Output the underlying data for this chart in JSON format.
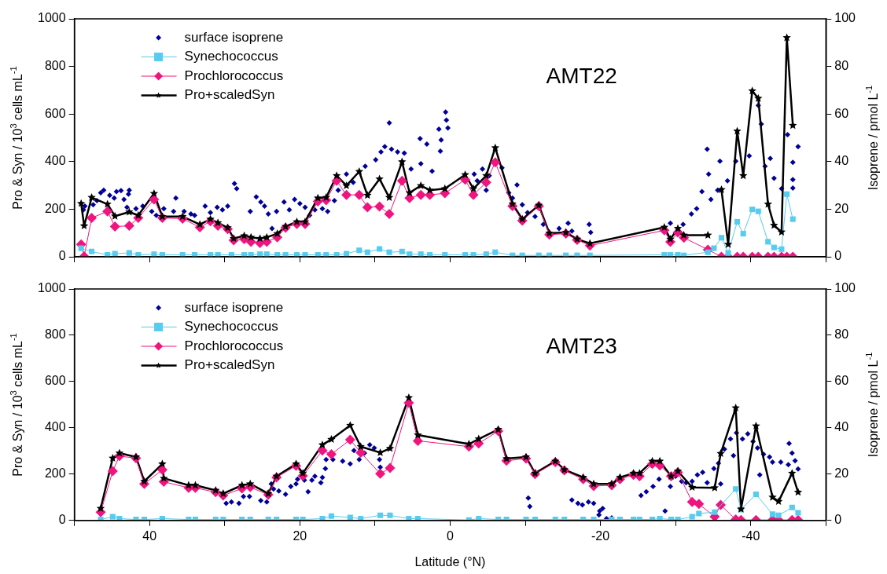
{
  "chart_data": [
    {
      "type": "line",
      "ylabel": "Pro & Syn / 10$^{3}$ cells mL$^{-1}$",
      "y2label": "Isoprene / pmol L$^{-1}$",
      "annotations": [
        "AMT22"
      ],
      "legend": "top left",
      "tick_labels": "y",
      "xlim": [
        50,
        -50
      ],
      "xticks": [
        {
          "value": 50,
          "label": null
        },
        40,
        {
          "value": 30,
          "label": null
        },
        20,
        {
          "value": 10,
          "label": null
        },
        0,
        {
          "value": -10,
          "label": null
        },
        -20,
        {
          "value": -30,
          "label": null
        },
        -40,
        {
          "value": -50,
          "label": null
        }
      ],
      "ylim": [
        0,
        1000
      ],
      "yticks": [
        0,
        200,
        400,
        600,
        800,
        1000
      ],
      "y2lim": [
        0,
        100
      ],
      "y2ticks": [
        0,
        20,
        40,
        60,
        80,
        100
      ],
      "series": [
        {
          "name": "surface isoprene",
          "type": "scatter",
          "axis": "y2",
          "marker": "diamond",
          "color": "#000099",
          "x": [
            48.8,
            48.6,
            47.5,
            47.0,
            46.5,
            46.1,
            45.3,
            44.7,
            44.4,
            43.8,
            43.4,
            42.8,
            42.7,
            43.0,
            41.8,
            40.9,
            39.7,
            39.1,
            38.1,
            36.8,
            36.5,
            35.4,
            34.5,
            34.0,
            32.6,
            31.9,
            31.0,
            30.3,
            29.6,
            28.7,
            28.4,
            26.6,
            25.8,
            25.2,
            24.7,
            24.2,
            23.7,
            23.1,
            22.1,
            21.4,
            20.7,
            20.0,
            19.3,
            18.7,
            18.0,
            17.0,
            16.3,
            15.4,
            14.9,
            13.8,
            12.9,
            11.3,
            9.9,
            9.2,
            8.7,
            8.1,
            7.8,
            7.0,
            6.1,
            5.2,
            3.9,
            4.0,
            3.1,
            2.4,
            1.5,
            1.2,
            1.3,
            0.6,
            0.5,
            0.3,
            -3.2,
            -3.6,
            -4.3,
            -5.2,
            -4.8,
            -6.9,
            -7.8,
            -8.3,
            -8.9,
            -9.6,
            -10.3,
            -11.3,
            -12.4,
            -14.5,
            -15.7,
            -16.2,
            -18.5,
            -18.7,
            -29.3,
            -31.0,
            -32.1,
            -32.8,
            -33.5,
            -34.2,
            -34.4,
            -34.7,
            -35.6,
            -35.9,
            -36.9,
            -38.0,
            -39.8,
            -41.0,
            -41.4,
            -41.9,
            -42.6,
            -43.1,
            -44.1,
            -44.9,
            -45.6,
            -45.6,
            -45.6,
            -46.3
          ],
          "values": [
            19.7,
            21.3,
            21.9,
            23.6,
            26.9,
            28.0,
            25.8,
            24.7,
            27.4,
            27.8,
            24.1,
            26.3,
            28.0,
            20.8,
            20.2,
            21.3,
            19.1,
            17.4,
            20.2,
            19.1,
            24.7,
            19.1,
            18.0,
            17.4,
            21.3,
            18.6,
            20.8,
            19.7,
            21.3,
            30.8,
            28.6,
            19.1,
            25.2,
            23.0,
            21.3,
            18.0,
            11.9,
            19.1,
            23.0,
            19.7,
            24.1,
            22.4,
            20.8,
            17.4,
            19.7,
            20.2,
            19.1,
            23.6,
            28.0,
            34.7,
            31.3,
            38.0,
            40.8,
            44.1,
            46.3,
            56.3,
            45.2,
            44.1,
            43.6,
            36.9,
            39.1,
            49.7,
            47.4,
            36.0,
            53.6,
            49.1,
            44.4,
            60.8,
            57.4,
            54.1,
            34.7,
            31.9,
            36.9,
            34.1,
            28.0,
            37.4,
            26.9,
            24.7,
            30.2,
            21.9,
            18.6,
            16.9,
            13.6,
            11.9,
            14.1,
            10.8,
            13.6,
            10.2,
            14.1,
            13.6,
            18.0,
            20.2,
            27.4,
            45.2,
            34.7,
            24.1,
            28.0,
            40.2,
            31.9,
            40.2,
            42.4,
            63.6,
            55.8,
            38.0,
            41.3,
            33.0,
            28.6,
            51.3,
            39.7,
            32.4,
            28.9,
            46.3
          ]
        },
        {
          "name": "Synechococcus",
          "type": "line",
          "marker": "square",
          "color": "#55ccf0",
          "x": [
            49.1,
            47.7,
            45.6,
            44.6,
            42.7,
            41.5,
            39.4,
            38.3,
            35.6,
            34.0,
            31.9,
            30.9,
            29.1,
            27.4,
            26.5,
            25.3,
            24.4,
            23.0,
            21.9,
            20.4,
            19.3,
            17.6,
            16.5,
            15.1,
            13.8,
            12.1,
            11.0,
            9.4,
            8.1,
            6.4,
            5.4,
            3.9,
            2.7,
            0.7,
            -2.0,
            -3.1,
            -4.8,
            -6.0,
            -8.3,
            -9.6,
            -11.8,
            -13.2,
            -15.4,
            -16.9,
            -18.6,
            -28.5,
            -29.3,
            -30.3,
            -31.1,
            -34.3,
            -35.1,
            -36.1,
            -37.0,
            -38.2,
            -39.0,
            -40.2,
            -41.0,
            -42.3,
            -43.1,
            -44.1,
            -44.8,
            -45.6
          ],
          "values": [
            36,
            22,
            8,
            13,
            16,
            8,
            11,
            8,
            8,
            8,
            8,
            8,
            8,
            8,
            8,
            11,
            11,
            8,
            8,
            8,
            8,
            8,
            8,
            8,
            13,
            27,
            19,
            33,
            19,
            22,
            11,
            11,
            8,
            8,
            8,
            8,
            11,
            19,
            6,
            6,
            6,
            6,
            6,
            6,
            6,
            8,
            8,
            8,
            6,
            19,
            36,
            80,
            16,
            147,
            97,
            199,
            191,
            63,
            39,
            32,
            263,
            158
          ]
        },
        {
          "name": "Prochlorococcus",
          "type": "line",
          "marker": "diamond",
          "color": "#f0147f",
          "x": [
            49.1,
            48.7,
            47.7,
            45.6,
            44.6,
            42.7,
            41.5,
            39.4,
            38.3,
            35.6,
            33.3,
            31.9,
            30.9,
            29.6,
            28.8,
            27.4,
            26.5,
            25.3,
            24.4,
            23.0,
            21.9,
            20.4,
            19.3,
            17.6,
            16.5,
            15.1,
            13.8,
            12.1,
            11.0,
            9.4,
            8.1,
            6.4,
            5.4,
            3.9,
            2.7,
            0.7,
            -2.0,
            -3.1,
            -4.8,
            -6.0,
            -8.3,
            -9.6,
            -11.8,
            -13.2,
            -15.4,
            -16.9,
            -18.6,
            -28.5,
            -29.3,
            -30.3,
            -31.1,
            -34.3,
            -36.1,
            -37.0,
            -38.2,
            -39.0,
            -40.2,
            -41.0,
            -42.3,
            -43.1,
            -44.1,
            -44.8,
            -45.6
          ],
          "values": [
            52,
            2,
            163,
            191,
            127,
            130,
            163,
            241,
            163,
            160,
            124,
            149,
            130,
            116,
            69,
            74,
            63,
            58,
            63,
            82,
            122,
            138,
            138,
            233,
            238,
            319,
            260,
            260,
            208,
            211,
            180,
            319,
            247,
            260,
            260,
            267,
            324,
            260,
            313,
            397,
            213,
            152,
            213,
            93,
            97,
            71,
            47,
            111,
            63,
            102,
            80,
            30,
            0,
            0,
            0,
            0,
            0,
            0,
            0,
            0,
            0,
            0,
            0
          ]
        },
        {
          "name": "Pro+scaledSyn",
          "type": "line",
          "marker": "star",
          "color": "#000000",
          "x": [
            49.1,
            48.7,
            47.7,
            45.6,
            44.6,
            42.7,
            41.5,
            39.4,
            38.3,
            35.6,
            33.3,
            31.9,
            30.9,
            29.6,
            28.8,
            27.4,
            26.5,
            25.3,
            24.4,
            23.0,
            21.9,
            20.4,
            19.3,
            17.6,
            16.5,
            15.1,
            13.8,
            12.1,
            11.0,
            9.4,
            8.1,
            6.4,
            5.4,
            3.9,
            2.7,
            0.7,
            -2.0,
            -3.1,
            -4.8,
            -6.0,
            -8.3,
            -9.6,
            -11.8,
            -13.2,
            -15.4,
            -16.9,
            -18.6,
            -28.5,
            -29.3,
            -30.3,
            -31.1,
            -34.3,
            -35.2,
            -36.1,
            -37.0,
            -38.2,
            -39.0,
            -40.2,
            -41.0,
            -42.3,
            -43.1,
            -44.1,
            -44.8,
            -45.6
          ],
          "values": [
            224,
            130,
            249,
            221,
            171,
            188,
            174,
            266,
            169,
            169,
            136,
            158,
            143,
            122,
            77,
            88,
            82,
            77,
            82,
            97,
            127,
            147,
            147,
            247,
            249,
            341,
            299,
            358,
            258,
            327,
            249,
            399,
            269,
            299,
            280,
            286,
            345,
            286,
            341,
            458,
            222,
            158,
            216,
            99,
            102,
            74,
            56,
            124,
            74,
            119,
            91,
            91,
            null,
            282,
            52,
            528,
            341,
            697,
            666,
            221,
            132,
            104,
            921,
            552
          ]
        }
      ]
    },
    {
      "type": "line",
      "xlabel": "Latitude (°N)",
      "ylabel": "Pro & Syn / 10$^{3}$ cells mL$^{-1}$",
      "y2label": "Isoprene / pmol L$^{-1}$",
      "annotations": [
        "AMT23"
      ],
      "legend": "top left",
      "xlim": [
        50,
        -50
      ],
      "xticks": [
        {
          "value": 50,
          "label": null
        },
        40,
        {
          "value": 30,
          "label": null
        },
        20,
        {
          "value": 10,
          "label": null
        },
        0,
        {
          "value": -10,
          "label": null
        },
        -20,
        {
          "value": -30,
          "label": null
        },
        -40,
        {
          "value": -50,
          "label": null
        }
      ],
      "ylim": [
        0,
        1000
      ],
      "yticks": [
        0,
        200,
        400,
        600,
        800,
        1000
      ],
      "y2lim": [
        0,
        100
      ],
      "y2ticks": [
        0,
        20,
        40,
        60,
        80,
        100
      ],
      "series": [
        {
          "name": "surface isoprene",
          "type": "scatter",
          "axis": "y2",
          "marker": "diamond",
          "color": "#000099",
          "x": [
            29.8,
            29.1,
            28.1,
            27.5,
            26.7,
            25.2,
            24.4,
            23.8,
            23.5,
            22.8,
            21.9,
            21.2,
            20.5,
            20.3,
            19.4,
            18.9,
            18.4,
            18.0,
            17.2,
            17.0,
            16.6,
            16.5,
            15.6,
            14.3,
            13.3,
            12.8,
            12.1,
            11.4,
            10.7,
            10.1,
            9.4,
            9.3,
            -10.4,
            -10.6,
            -16.2,
            -17.0,
            -17.6,
            -18.4,
            -19.1,
            -19.9,
            -20.3,
            -19.8,
            -20.8,
            -21.5,
            -25.4,
            -26.1,
            -27.0,
            -27.8,
            -28.6,
            -29.3,
            -30.0,
            -30.8,
            -31.4,
            -32.2,
            -32.9,
            -33.6,
            -34.2,
            -35.1,
            -35.7,
            -36.0,
            -36.5,
            -37.3,
            -37.7,
            -38.1,
            -38.9,
            -39.6,
            -40.3,
            -40.9,
            -41.2,
            -41.7,
            -42.5,
            -42.9,
            -44.0,
            -45.1,
            -45.5,
            -45.9,
            -46.3,
            -45.0
          ],
          "values": [
            7.4,
            8.0,
            7.4,
            10.4,
            10.4,
            8.6,
            8.0,
            15.8,
            13.6,
            12.7,
            11.3,
            14.7,
            15.8,
            17.8,
            17.4,
            12.4,
            17.4,
            19.1,
            16.3,
            18.6,
            22.4,
            26.3,
            26.3,
            25.6,
            24.4,
            30.2,
            26.3,
            29.1,
            32.7,
            31.3,
            26.3,
            23.0,
            9.7,
            6.0,
            8.8,
            7.4,
            6.7,
            8.0,
            7.4,
            4.1,
            5.2,
            2.4,
            0.8,
            1.1,
            10.8,
            12.4,
            14.7,
            17.8,
            4.1,
            14.7,
            19.1,
            16.9,
            16.3,
            16.9,
            19.7,
            20.8,
            16.3,
            22.4,
            24.7,
            15.8,
            30.8,
            35.2,
            28.0,
            37.8,
            35.2,
            37.4,
            34.1,
            31.3,
            19.7,
            28.6,
            27.4,
            25.2,
            25.2,
            33.3,
            29.1,
            25.8,
            22.2,
            24.1
          ]
        },
        {
          "name": "Synechococcus",
          "type": "line",
          "marker": "square",
          "color": "#55ccf0",
          "x": [
            46.5,
            44.9,
            44.0,
            41.8,
            40.7,
            38.3,
            34.8,
            33.9,
            31.2,
            30.2,
            27.7,
            26.6,
            24.2,
            23.1,
            20.5,
            19.6,
            17.0,
            15.8,
            13.3,
            11.9,
            9.3,
            8.0,
            5.5,
            4.3,
            -2.5,
            -3.8,
            -6.4,
            -7.5,
            -10.1,
            -11.3,
            -14.0,
            -15.2,
            -17.7,
            -19.1,
            -21.5,
            -22.6,
            -24.4,
            -25.2,
            -26.9,
            -27.9,
            -29.4,
            -30.3,
            -32.2,
            -33.1,
            -35.2,
            -38.0,
            -38.7,
            -40.7,
            -42.9,
            -43.7,
            -45.5,
            -46.3
          ],
          "values": [
            4,
            16,
            8,
            4,
            4,
            8,
            4,
            4,
            4,
            4,
            4,
            4,
            4,
            4,
            4,
            4,
            8,
            19,
            13,
            8,
            22,
            22,
            8,
            8,
            2,
            8,
            4,
            4,
            4,
            4,
            4,
            4,
            4,
            4,
            4,
            4,
            4,
            4,
            4,
            8,
            4,
            4,
            16,
            30,
            36,
            136,
            47,
            113,
            27,
            22,
            56,
            33
          ]
        },
        {
          "name": "Prochlorococcus",
          "type": "line",
          "marker": "diamond",
          "color": "#f0147f",
          "x": [
            46.5,
            44.9,
            44.0,
            41.8,
            40.7,
            38.3,
            38.1,
            34.8,
            33.9,
            31.2,
            30.2,
            27.7,
            26.6,
            24.2,
            23.1,
            20.5,
            19.6,
            17.0,
            15.8,
            13.3,
            11.9,
            9.3,
            8.0,
            5.5,
            4.3,
            -2.5,
            -3.8,
            -6.4,
            -7.5,
            -10.1,
            -11.3,
            -14.0,
            -15.2,
            -17.7,
            -19.1,
            -21.5,
            -22.6,
            -24.4,
            -25.2,
            -26.9,
            -27.9,
            -29.4,
            -30.3,
            -32.2,
            -33.1,
            -35.2,
            -36.0,
            -38.0,
            -38.7,
            -40.7,
            -42.9,
            -43.7,
            -45.5,
            -46.3
          ],
          "values": [
            36,
            213,
            278,
            269,
            158,
            219,
            167,
            141,
            141,
            122,
            108,
            138,
            144,
            111,
            186,
            236,
            193,
            302,
            286,
            349,
            293,
            202,
            227,
            508,
            344,
            319,
            333,
            386,
            258,
            267,
            200,
            252,
            216,
            178,
            149,
            152,
            178,
            197,
            191,
            244,
            238,
            191,
            208,
            80,
            71,
            16,
            67,
            4,
            2,
            2,
            2,
            2,
            2,
            2
          ]
        },
        {
          "name": "Pro+scaledSyn",
          "type": "line",
          "marker": "star",
          "color": "#000000",
          "x": [
            46.5,
            44.9,
            44.0,
            41.8,
            40.7,
            38.3,
            38.1,
            34.8,
            33.9,
            31.2,
            30.2,
            27.7,
            26.6,
            24.2,
            23.1,
            20.5,
            19.6,
            17.0,
            15.8,
            13.3,
            11.9,
            9.3,
            8.0,
            5.5,
            4.3,
            -2.5,
            -3.8,
            -6.4,
            -7.5,
            -10.1,
            -11.3,
            -14.0,
            -15.2,
            -17.7,
            -19.1,
            -21.5,
            -22.6,
            -24.4,
            -25.2,
            -26.9,
            -27.9,
            -29.4,
            -30.3,
            -32.2,
            -35.2,
            -36.0,
            -38.0,
            -38.7,
            -40.7,
            -42.9,
            -43.7,
            -45.5,
            -46.3
          ],
          "values": [
            52,
            269,
            291,
            274,
            169,
            244,
            182,
            152,
            152,
            130,
            116,
            152,
            158,
            116,
            191,
            244,
            204,
            327,
            350,
            411,
            319,
            293,
            311,
            530,
            369,
            330,
            352,
            393,
            267,
            274,
            204,
            256,
            219,
            186,
            158,
            158,
            186,
            204,
            204,
            256,
            256,
            191,
            213,
            143,
            141,
            289,
            486,
            49,
            408,
            100,
            82,
            204,
            122
          ]
        }
      ]
    }
  ]
}
